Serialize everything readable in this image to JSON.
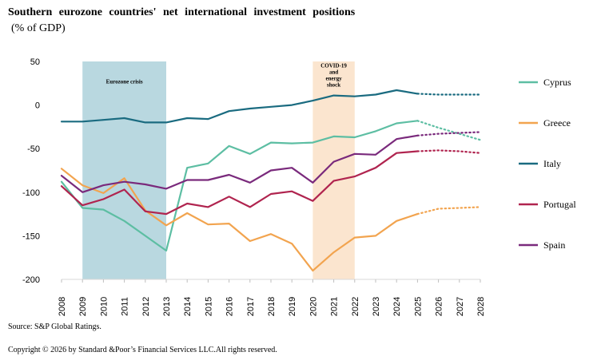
{
  "chart_data": {
    "type": "line",
    "title": "Southern eurozone countries' net international investment positions",
    "subtitle": "(% of GDP)",
    "xlabel": "",
    "ylabel": "",
    "categories": [
      "2008",
      "2009",
      "2010",
      "2011",
      "2012",
      "2013",
      "2014",
      "2015",
      "2016",
      "2017",
      "2018",
      "2019",
      "2020",
      "2021",
      "2022",
      "2023",
      "2024",
      "2025",
      "2026",
      "2027",
      "2028"
    ],
    "ylim": [
      -200,
      50
    ],
    "yticks": [
      50,
      0,
      -50,
      -100,
      -150,
      -200
    ],
    "forecast_from": "2025",
    "shaded_periods": [
      {
        "label": "Eurozone crisis",
        "start": "2009",
        "end": "2013",
        "color": "#b9d8e0",
        "label_y": 25
      },
      {
        "label": "COVID-19 and energy shock",
        "label_lines": [
          "COVID-19",
          "and",
          "energy",
          "shock"
        ],
        "start": "2020",
        "end": "2022",
        "color": "#fbe5cf",
        "label_y": 43
      }
    ],
    "series": [
      {
        "name": "Cyprus",
        "color": "#5dbea3",
        "values": [
          -88,
          -118,
          -120,
          -133,
          -150,
          -167,
          -72,
          -67,
          -47,
          -56,
          -43,
          -44,
          -43,
          -36,
          -37,
          -30,
          -21,
          -18,
          -26,
          -33,
          -40
        ]
      },
      {
        "name": "Greece",
        "color": "#f2a44f",
        "values": [
          -73,
          -92,
          -101,
          -84,
          -121,
          -138,
          -124,
          -137,
          -136,
          -156,
          -148,
          -159,
          -190,
          -169,
          -152,
          -150,
          -133,
          -125,
          -119,
          -118,
          -117
        ]
      },
      {
        "name": "Italy",
        "color": "#1a6b80",
        "values": [
          -19,
          -19,
          -17,
          -15,
          -20,
          -20,
          -15,
          -16,
          -7,
          -4,
          -2,
          0,
          5,
          11,
          10,
          12,
          17,
          13,
          12,
          12,
          12
        ]
      },
      {
        "name": "Portugal",
        "color": "#b0244f",
        "values": [
          -93,
          -115,
          -108,
          -97,
          -122,
          -125,
          -113,
          -117,
          -105,
          -117,
          -102,
          -99,
          -110,
          -87,
          -82,
          -72,
          -55,
          -53,
          -52,
          -53,
          -55
        ]
      },
      {
        "name": "Spain",
        "color": "#7a2a7c",
        "values": [
          -81,
          -100,
          -92,
          -88,
          -91,
          -96,
          -86,
          -86,
          -80,
          -89,
          -75,
          -72,
          -89,
          -65,
          -56,
          -57,
          -39,
          -35,
          -33,
          -32,
          -31
        ]
      }
    ]
  },
  "footer": {
    "source": "Source:  S&P Global Ratings.",
    "copyright": "Copyright  © 2026  by Standard   &Poor’s  Financial  Services  LLC.All rights  reserved."
  }
}
